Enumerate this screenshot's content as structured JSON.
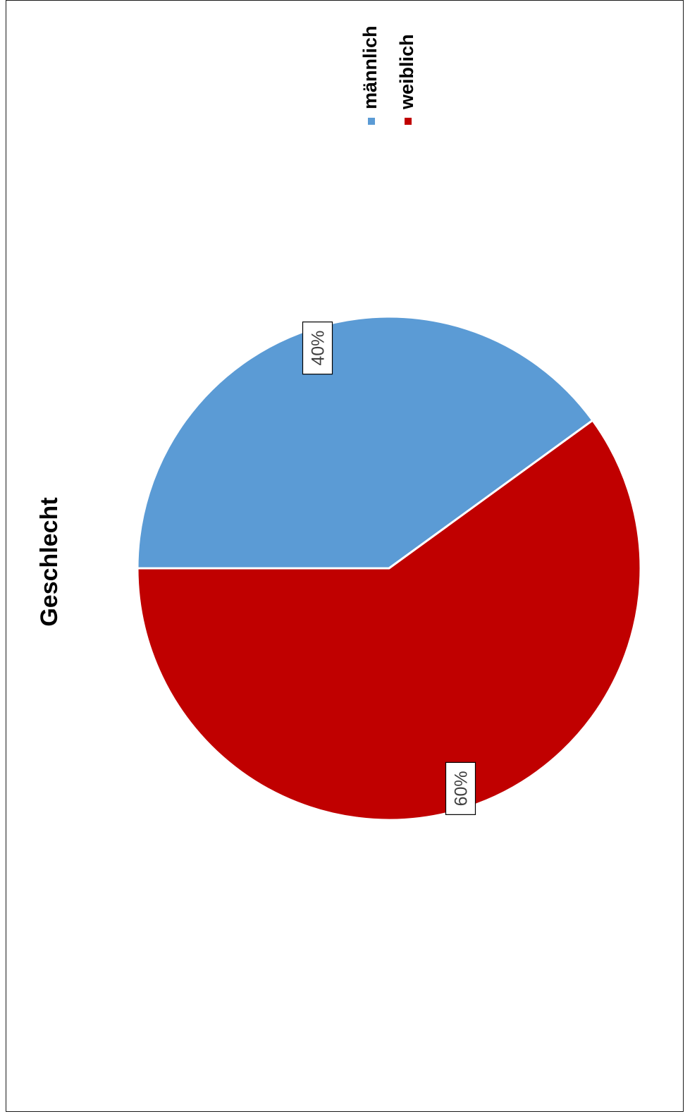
{
  "chart_data": {
    "type": "pie",
    "title": "Geschlecht",
    "categories": [
      "männlich",
      "weiblich"
    ],
    "values": [
      40,
      60
    ],
    "value_labels": [
      "40%",
      "60%"
    ],
    "colors": [
      "#5b9bd5",
      "#c00000"
    ],
    "legend_position": "top-right",
    "orientation": "rotated 90° counter-clockwise"
  }
}
